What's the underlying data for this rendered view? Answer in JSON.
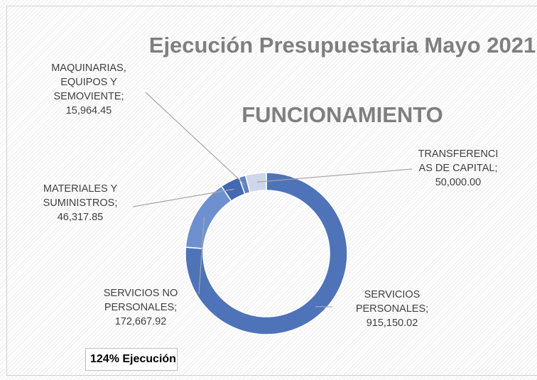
{
  "chart_data": {
    "type": "donut",
    "title": "Ejecución Presupuestaria Mayo 2021",
    "subtitle": "FUNCIONAMIENTO",
    "annotation": "124% Ejecución",
    "label_separator": ";",
    "categories": [
      "SERVICIOS PERSONALES",
      "SERVICIOS NO PERSONALES",
      "MATERIALES Y SUMINISTROS",
      "MAQUINARIAS, EQUIPOS Y SEMOVIENTE",
      "TRANSFERENCIAS DE CAPITAL"
    ],
    "values": [
      915150.02,
      172667.92,
      46317.85,
      15964.45,
      50000.0
    ],
    "value_labels": [
      "915,150.02",
      "172,667.92",
      "46,317.85",
      "15,964.45",
      "50,000.00"
    ],
    "colors": [
      "#4f73b8",
      "#6f90cf",
      "#4369b2",
      "#5e81c6",
      "#cdd6ec"
    ]
  }
}
